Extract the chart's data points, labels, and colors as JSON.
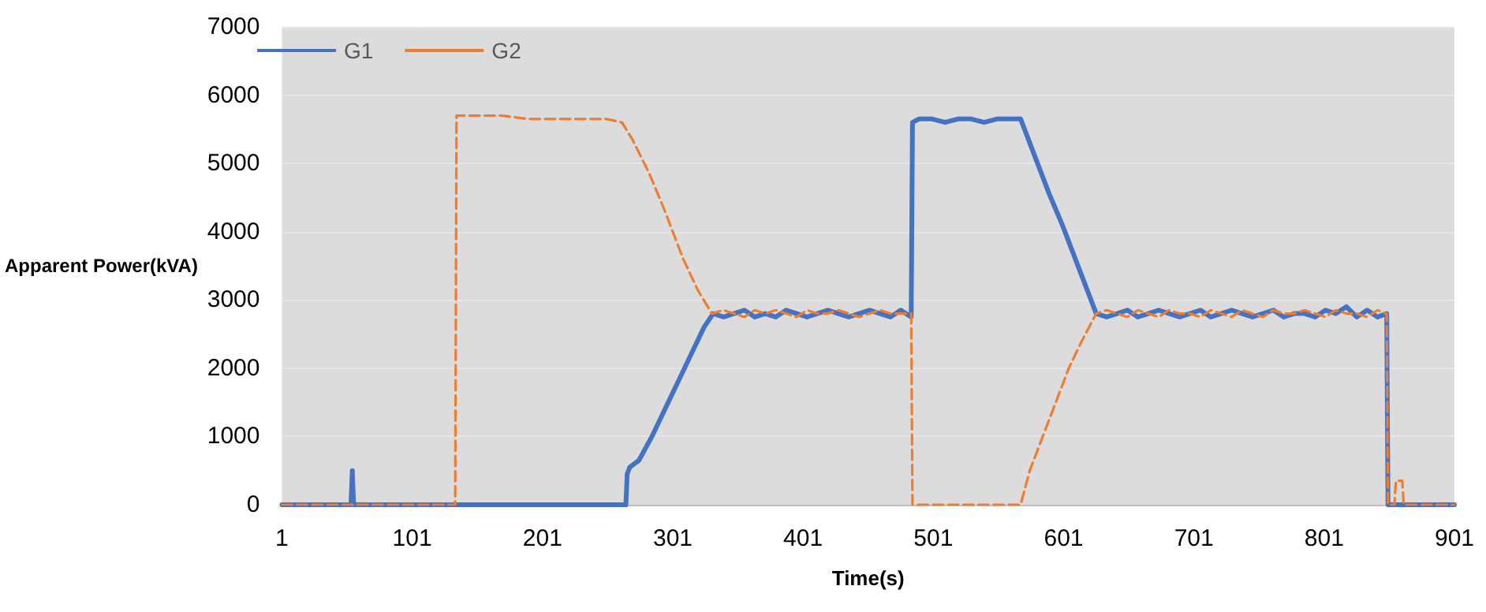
{
  "chart_data": {
    "type": "line",
    "xlabel": "Time(s)",
    "ylabel": "Apparent Power(kVA)",
    "xlim": [
      1,
      901
    ],
    "xticks": [
      1,
      101,
      201,
      301,
      401,
      501,
      601,
      701,
      801,
      901
    ],
    "ylim": [
      0,
      7000
    ],
    "yticks": [
      0,
      1000,
      2000,
      3000,
      4000,
      5000,
      6000,
      7000
    ],
    "grid": "y",
    "legend": "top left",
    "marker": "none",
    "series": [
      {
        "name": "G1",
        "color": "#4472c4",
        "line_style": "solid",
        "x": [
          1,
          54,
          55,
          56,
          265,
          266,
          268,
          275,
          285,
          295,
          305,
          315,
          325,
          332,
          340,
          348,
          356,
          364,
          372,
          380,
          388,
          396,
          404,
          412,
          420,
          428,
          436,
          444,
          452,
          460,
          468,
          476,
          484,
          485,
          490,
          500,
          510,
          520,
          530,
          540,
          550,
          560,
          568,
          580,
          590,
          600,
          610,
          620,
          626,
          634,
          642,
          650,
          658,
          666,
          674,
          682,
          690,
          698,
          706,
          714,
          722,
          730,
          738,
          746,
          754,
          762,
          770,
          778,
          786,
          794,
          802,
          810,
          818,
          826,
          834,
          842,
          849,
          850,
          901
        ],
        "values": [
          0,
          0,
          500,
          0,
          0,
          450,
          550,
          650,
          1000,
          1400,
          1800,
          2200,
          2600,
          2800,
          2750,
          2800,
          2850,
          2750,
          2800,
          2750,
          2850,
          2800,
          2750,
          2800,
          2850,
          2800,
          2750,
          2800,
          2850,
          2800,
          2750,
          2850,
          2750,
          5600,
          5650,
          5650,
          5600,
          5650,
          5650,
          5600,
          5650,
          5650,
          5650,
          5050,
          4550,
          4100,
          3600,
          3100,
          2800,
          2750,
          2800,
          2850,
          2750,
          2800,
          2850,
          2800,
          2750,
          2800,
          2850,
          2750,
          2800,
          2850,
          2800,
          2750,
          2800,
          2850,
          2750,
          2800,
          2800,
          2750,
          2850,
          2800,
          2900,
          2750,
          2850,
          2750,
          2800,
          0,
          0
        ]
      },
      {
        "name": "G2",
        "color": "#ed7d31",
        "line_style": "dashed",
        "x": [
          1,
          134,
          135,
          150,
          170,
          190,
          210,
          230,
          250,
          262,
          270,
          283,
          295,
          309,
          320,
          331,
          340,
          348,
          356,
          364,
          372,
          380,
          388,
          396,
          404,
          412,
          420,
          428,
          436,
          444,
          452,
          460,
          468,
          476,
          484,
          485,
          568,
          575,
          585,
          595,
          605,
          615,
          626,
          634,
          642,
          650,
          658,
          666,
          674,
          682,
          690,
          698,
          706,
          714,
          722,
          730,
          738,
          746,
          754,
          762,
          770,
          778,
          786,
          794,
          802,
          810,
          818,
          826,
          834,
          842,
          849,
          850,
          855,
          856,
          861,
          862,
          901
        ],
        "values": [
          0,
          0,
          5700,
          5700,
          5700,
          5650,
          5650,
          5650,
          5650,
          5600,
          5350,
          4850,
          4300,
          3600,
          3150,
          2800,
          2850,
          2800,
          2750,
          2850,
          2800,
          2850,
          2800,
          2750,
          2850,
          2800,
          2800,
          2850,
          2800,
          2750,
          2800,
          2850,
          2800,
          2800,
          2800,
          0,
          0,
          500,
          1000,
          1500,
          2000,
          2400,
          2800,
          2850,
          2800,
          2750,
          2850,
          2800,
          2750,
          2850,
          2800,
          2800,
          2750,
          2850,
          2800,
          2750,
          2850,
          2800,
          2750,
          2850,
          2800,
          2800,
          2850,
          2800,
          2750,
          2850,
          2800,
          2800,
          2750,
          2850,
          2800,
          0,
          0,
          350,
          350,
          0,
          0
        ]
      }
    ]
  }
}
